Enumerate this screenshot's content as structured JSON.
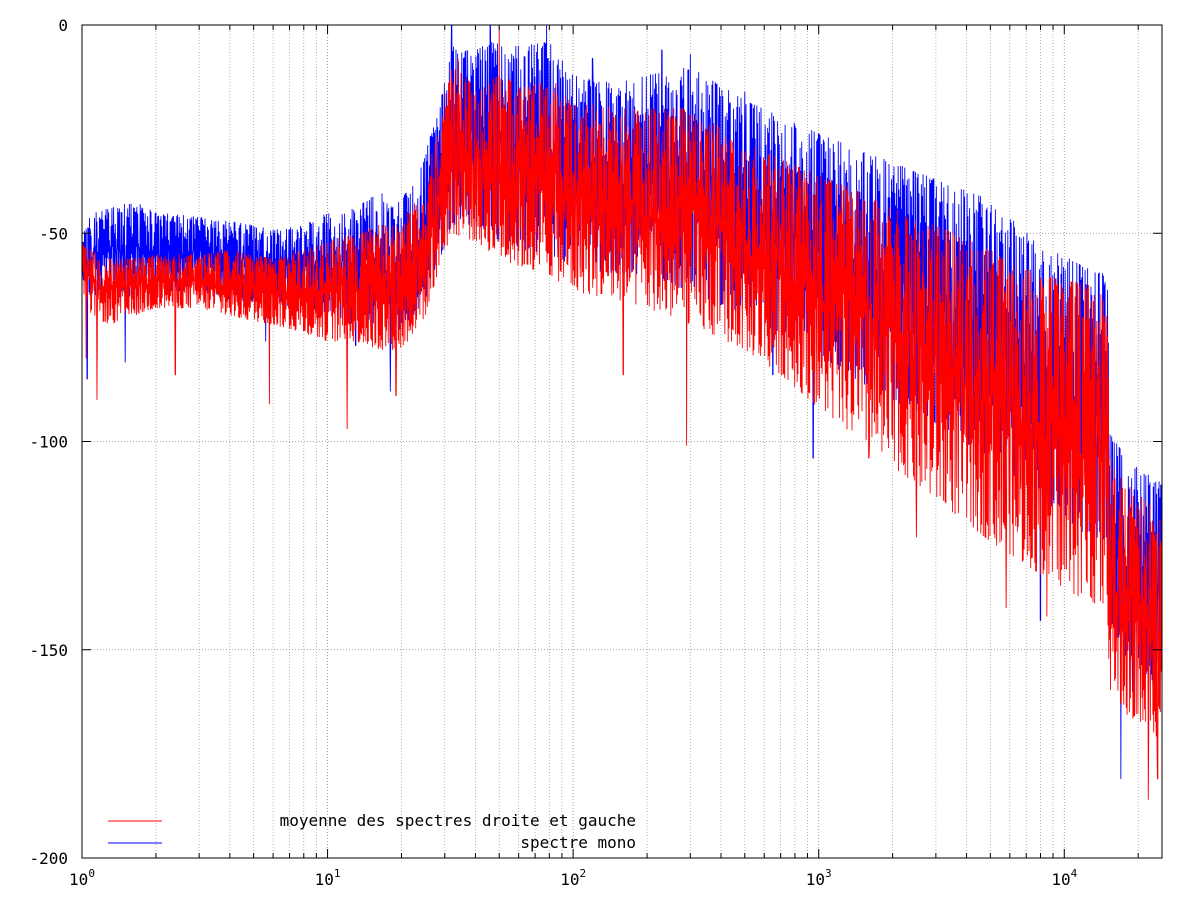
{
  "chart_data": {
    "type": "line",
    "title": "",
    "xlabel": "",
    "ylabel": "",
    "x_scale": "log",
    "xlim": [
      1,
      25000
    ],
    "ylim": [
      -200,
      0
    ],
    "grid": true,
    "legend_position": "bottom-left",
    "x_ticks": [
      {
        "value": 1,
        "base": "10",
        "exp": "0"
      },
      {
        "value": 10,
        "base": "10",
        "exp": "1"
      },
      {
        "value": 100,
        "base": "10",
        "exp": "2"
      },
      {
        "value": 1000,
        "base": "10",
        "exp": "3"
      },
      {
        "value": 10000,
        "base": "10",
        "exp": "4"
      }
    ],
    "y_ticks": [
      {
        "value": 0,
        "label": "0"
      },
      {
        "value": -50,
        "label": "-50"
      },
      {
        "value": -100,
        "label": "-100"
      },
      {
        "value": -150,
        "label": "-150"
      },
      {
        "value": -200,
        "label": "-200"
      }
    ],
    "series": [
      {
        "name": "spectre mono",
        "color": "#0000ff",
        "draw_order": 1,
        "envelope": {
          "x": [
            1,
            1.1,
            1.3,
            1.6,
            2,
            3,
            4,
            6,
            8,
            10,
            13,
            16,
            20,
            25,
            28,
            32,
            40,
            50,
            60,
            80,
            100,
            150,
            200,
            300,
            500,
            700,
            1000,
            1500,
            2000,
            3000,
            5000,
            8000,
            12000,
            15000,
            15300,
            18000,
            22000,
            25000
          ],
          "top": [
            -50,
            -45,
            -44,
            -42,
            -45,
            -46,
            -47,
            -49,
            -48,
            -45,
            -44,
            -40,
            -42,
            -30,
            -22,
            -5,
            -6,
            -3,
            -5,
            -4,
            -12,
            -14,
            -12,
            -10,
            -18,
            -22,
            -26,
            -30,
            -33,
            -37,
            -42,
            -52,
            -58,
            -60,
            -98,
            -104,
            -108,
            -110
          ],
          "bottom": [
            -62,
            -66,
            -64,
            -66,
            -64,
            -64,
            -66,
            -67,
            -68,
            -70,
            -72,
            -74,
            -74,
            -66,
            -58,
            -48,
            -48,
            -52,
            -54,
            -55,
            -58,
            -60,
            -60,
            -64,
            -70,
            -74,
            -80,
            -86,
            -90,
            -96,
            -104,
            -114,
            -122,
            -124,
            -146,
            -152,
            -158,
            -160
          ],
          "spikes": [
            {
              "x": 1.05,
              "y": -85
            },
            {
              "x": 1.5,
              "y": -81
            },
            {
              "x": 5.6,
              "y": -76
            },
            {
              "x": 13,
              "y": -77
            },
            {
              "x": 18,
              "y": -88
            },
            {
              "x": 32,
              "y": 0
            },
            {
              "x": 46,
              "y": 0
            },
            {
              "x": 78,
              "y": 0
            },
            {
              "x": 120,
              "y": -8
            },
            {
              "x": 230,
              "y": -6
            },
            {
              "x": 300,
              "y": -7
            },
            {
              "x": 500,
              "y": -16
            },
            {
              "x": 650,
              "y": -84
            },
            {
              "x": 950,
              "y": -104
            },
            {
              "x": 3500,
              "y": -108
            },
            {
              "x": 8000,
              "y": -143
            },
            {
              "x": 17000,
              "y": -181
            },
            {
              "x": 19000,
              "y": -160
            }
          ]
        }
      },
      {
        "name": "moyenne des spectres droite et gauche",
        "color": "#ff0000",
        "draw_order": 2,
        "envelope": {
          "x": [
            1,
            1.1,
            1.3,
            1.6,
            2,
            3,
            4,
            6,
            8,
            10,
            13,
            16,
            20,
            25,
            28,
            32,
            40,
            50,
            60,
            80,
            100,
            150,
            200,
            300,
            500,
            700,
            1000,
            1500,
            2000,
            3000,
            5000,
            8000,
            12000,
            15000,
            15300,
            18000,
            22000,
            25000
          ],
          "top": [
            -52,
            -54,
            -56,
            -56,
            -55,
            -55,
            -54,
            -56,
            -54,
            -52,
            -50,
            -48,
            -48,
            -36,
            -26,
            -10,
            -14,
            -12,
            -14,
            -14,
            -18,
            -20,
            -20,
            -20,
            -28,
            -32,
            -36,
            -40,
            -44,
            -48,
            -54,
            -60,
            -62,
            -64,
            -104,
            -110,
            -114,
            -118
          ],
          "bottom": [
            -64,
            -70,
            -72,
            -70,
            -68,
            -68,
            -70,
            -72,
            -74,
            -76,
            -76,
            -78,
            -78,
            -70,
            -60,
            -50,
            -52,
            -56,
            -58,
            -60,
            -64,
            -66,
            -68,
            -72,
            -78,
            -84,
            -92,
            -100,
            -106,
            -114,
            -124,
            -132,
            -138,
            -140,
            -160,
            -166,
            -170,
            -172
          ],
          "spikes": [
            {
              "x": 1.04,
              "y": -80
            },
            {
              "x": 1.15,
              "y": -90
            },
            {
              "x": 2.4,
              "y": -84
            },
            {
              "x": 5.8,
              "y": -91
            },
            {
              "x": 12,
              "y": -97
            },
            {
              "x": 19,
              "y": -89
            },
            {
              "x": 34,
              "y": -8
            },
            {
              "x": 50,
              "y": 0
            },
            {
              "x": 85,
              "y": -14
            },
            {
              "x": 160,
              "y": -84
            },
            {
              "x": 290,
              "y": -101
            },
            {
              "x": 1600,
              "y": -104
            },
            {
              "x": 2500,
              "y": -123
            },
            {
              "x": 5800,
              "y": -140
            },
            {
              "x": 8500,
              "y": -142
            },
            {
              "x": 22000,
              "y": -186
            },
            {
              "x": 24000,
              "y": -181
            }
          ]
        }
      }
    ],
    "legend": [
      {
        "label": "moyenne des spectres droite et gauche",
        "color": "#ff0000"
      },
      {
        "label": "spectre mono",
        "color": "#0000ff"
      }
    ]
  }
}
